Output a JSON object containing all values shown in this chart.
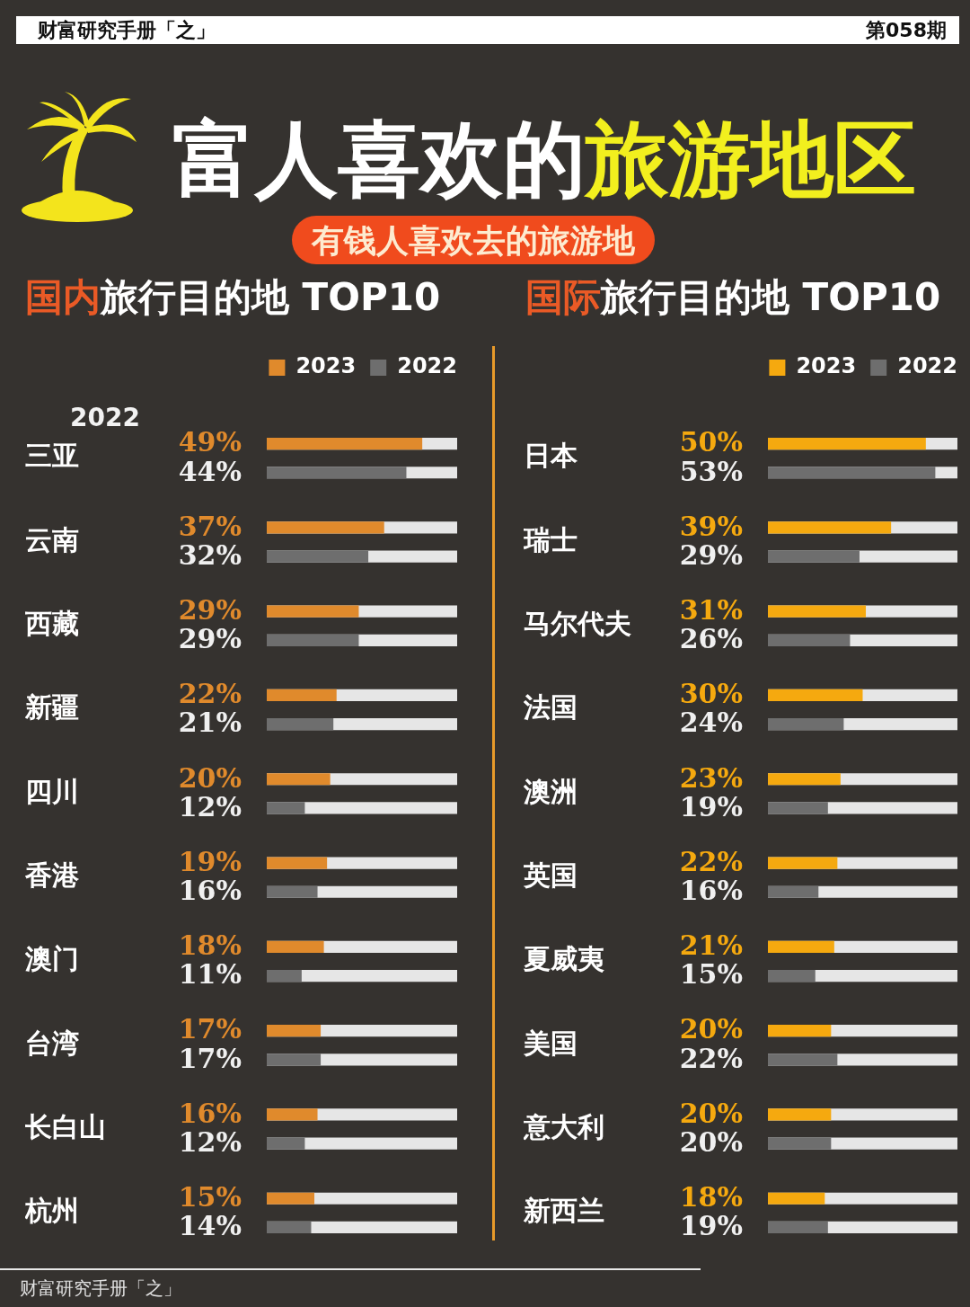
{
  "chart_data": [
    {
      "type": "other",
      "title": "富人喜欢的旅游地区",
      "annotations": [
        "财富研究手册「之」",
        "第058期",
        "有钱人喜欢去的旅游地"
      ]
    },
    {
      "type": "bar",
      "orientation": "horizontal",
      "title": "国内旅行目的地 TOP10",
      "categories": [
        "三亚",
        "云南",
        "西藏",
        "新疆",
        "四川",
        "香港",
        "澳门",
        "台湾",
        "长白山",
        "杭州"
      ],
      "series": [
        {
          "name": "2023",
          "color": "#e08a2c",
          "values": [
            49,
            37,
            29,
            22,
            20,
            19,
            18,
            17,
            16,
            15
          ],
          "value_labels": [
            "49%",
            "37%",
            "29%",
            "22%",
            "20%",
            "19%",
            "18%",
            "17%",
            "16%",
            "15%"
          ]
        },
        {
          "name": "2022",
          "color": "#6e6e6e",
          "values": [
            44,
            32,
            29,
            21,
            12,
            16,
            11,
            17,
            12,
            14
          ],
          "value_labels": [
            "44%",
            "32%",
            "29%",
            "21%",
            "12%",
            "16%",
            "11%",
            "17%",
            "12%",
            "14%"
          ]
        }
      ],
      "xlim": [
        0,
        60
      ],
      "tick_labels": "y",
      "legend": "top right",
      "annotations": [
        "2022",
        "财富研究手册「之」"
      ]
    },
    {
      "type": "bar",
      "orientation": "horizontal",
      "title": "国际旅行目的地 TOP10",
      "categories": [
        "日本",
        "瑞士",
        "马尔代夫",
        "法国",
        "澳洲",
        "英国",
        "夏威夷",
        "美国",
        "意大利",
        "新西兰"
      ],
      "series": [
        {
          "name": "2023",
          "color": "#f5a90f",
          "values": [
            50,
            39,
            31,
            30,
            23,
            22,
            21,
            20,
            20,
            18
          ],
          "value_labels": [
            "50%",
            "39%",
            "31%",
            "30%",
            "23%",
            "22%",
            "21%",
            "20%",
            "20%",
            "18%"
          ]
        },
        {
          "name": "2022",
          "color": "#6e6e6e",
          "values": [
            53,
            29,
            26,
            24,
            19,
            16,
            15,
            22,
            20,
            19
          ],
          "value_labels": [
            "53%",
            "29%",
            "26%",
            "24%",
            "19%",
            "16%",
            "15%",
            "22%",
            "20%",
            "19%"
          ]
        }
      ],
      "xlim": [
        0,
        60
      ],
      "tick_labels": "y",
      "legend": "top right"
    }
  ]
}
